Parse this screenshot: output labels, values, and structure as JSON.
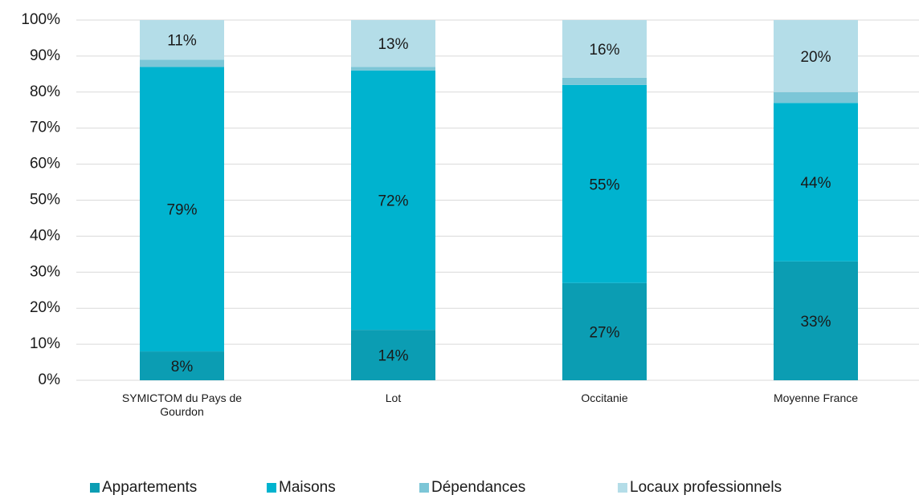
{
  "chart_data": {
    "type": "stacked_bar",
    "categories": [
      "SYMICTOM du Pays de Gourdon",
      "Lot",
      "Occitanie",
      "Moyenne France"
    ],
    "series": [
      {
        "name": "Appartements",
        "color": "#0b9db3",
        "values": [
          8,
          14,
          27,
          33
        ],
        "value_labels": [
          "8%",
          "14%",
          "27%",
          "33%"
        ]
      },
      {
        "name": "Maisons",
        "color": "#00b3cf",
        "values": [
          79,
          72,
          55,
          44
        ],
        "value_labels": [
          "79%",
          "72%",
          "55%",
          "44%"
        ]
      },
      {
        "name": "Dépendances",
        "color": "#7cc6d7",
        "values": [
          2,
          1,
          2,
          3
        ]
      },
      {
        "name": "Locaux professionnels",
        "color": "#b4dde8",
        "values": [
          11,
          13,
          16,
          20
        ],
        "value_labels": [
          "11%",
          "13%",
          "16%",
          "20%"
        ]
      }
    ],
    "ylim": [
      0,
      100
    ],
    "yticks": [
      {
        "value": 0,
        "label": "0%"
      },
      {
        "value": 10,
        "label": "10%"
      },
      {
        "value": 20,
        "label": "20%"
      },
      {
        "value": 30,
        "label": "30%"
      },
      {
        "value": 40,
        "label": "40%"
      },
      {
        "value": 50,
        "label": "50%"
      },
      {
        "value": 60,
        "label": "60%"
      },
      {
        "value": 70,
        "label": "70%"
      },
      {
        "value": 80,
        "label": "80%"
      },
      {
        "value": 90,
        "label": "90%"
      },
      {
        "value": 100,
        "label": "100%"
      }
    ],
    "grid": true
  }
}
